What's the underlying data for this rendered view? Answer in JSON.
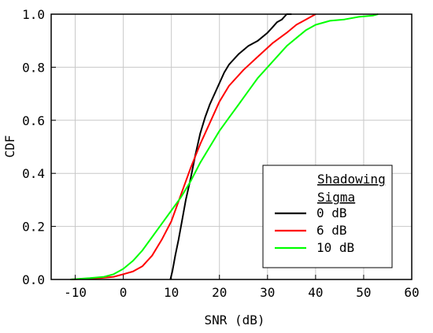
{
  "chart_data": {
    "type": "line",
    "title": "",
    "xlabel": "SNR (dB)",
    "ylabel": "CDF",
    "xlim": [
      -15,
      60
    ],
    "ylim": [
      0,
      1.0
    ],
    "xticks": [
      -10,
      0,
      10,
      20,
      30,
      40,
      50,
      60
    ],
    "yticks": [
      0.0,
      0.2,
      0.4,
      0.6,
      0.8,
      1.0
    ],
    "xtick_labels": [
      "-10",
      "0",
      "10",
      "20",
      "30",
      "40",
      "50",
      "60"
    ],
    "ytick_labels": [
      "0.0",
      "0.2",
      "0.4",
      "0.6",
      "0.8",
      "1.0"
    ],
    "grid": true,
    "legend": {
      "title_line1": "Shadowing",
      "title_line2": "Sigma",
      "placement": "bottom-right"
    },
    "series": [
      {
        "name": "0 dB",
        "color": "#000000",
        "x": [
          9.8,
          10.2,
          10.8,
          11.5,
          12.2,
          13.0,
          14.0,
          15.0,
          16.0,
          17.0,
          18.0,
          19.0,
          20.0,
          21.0,
          22.0,
          24.0,
          26.0,
          28.0,
          30.0,
          31.0,
          32.0,
          33.0,
          34.0,
          35.0
        ],
        "y": [
          0.0,
          0.03,
          0.09,
          0.15,
          0.22,
          0.3,
          0.38,
          0.47,
          0.55,
          0.61,
          0.66,
          0.7,
          0.74,
          0.78,
          0.81,
          0.85,
          0.88,
          0.9,
          0.93,
          0.95,
          0.97,
          0.98,
          1.0,
          1.0
        ]
      },
      {
        "name": "6 dB",
        "color": "#ff0000",
        "x": [
          -11,
          -5,
          -2,
          0,
          2,
          4,
          6,
          8,
          10,
          12,
          14,
          16,
          18,
          20,
          22,
          25,
          28,
          31,
          34,
          36,
          38,
          40
        ],
        "y": [
          0.0,
          0.005,
          0.01,
          0.02,
          0.03,
          0.05,
          0.09,
          0.15,
          0.22,
          0.32,
          0.42,
          0.51,
          0.59,
          0.67,
          0.73,
          0.79,
          0.84,
          0.89,
          0.93,
          0.96,
          0.98,
          1.0
        ]
      },
      {
        "name": "10 dB",
        "color": "#00ff00",
        "x": [
          -11,
          -7,
          -4,
          -2,
          0,
          2,
          4,
          6,
          8,
          10,
          12,
          14,
          16,
          18,
          20,
          22,
          24,
          26,
          28,
          30,
          32,
          34,
          36,
          38,
          40,
          43,
          46,
          49,
          52,
          53
        ],
        "y": [
          0.0,
          0.005,
          0.01,
          0.02,
          0.04,
          0.07,
          0.11,
          0.16,
          0.21,
          0.26,
          0.31,
          0.37,
          0.44,
          0.5,
          0.56,
          0.61,
          0.66,
          0.71,
          0.76,
          0.8,
          0.84,
          0.88,
          0.91,
          0.94,
          0.96,
          0.975,
          0.98,
          0.99,
          0.995,
          1.0
        ]
      }
    ]
  }
}
